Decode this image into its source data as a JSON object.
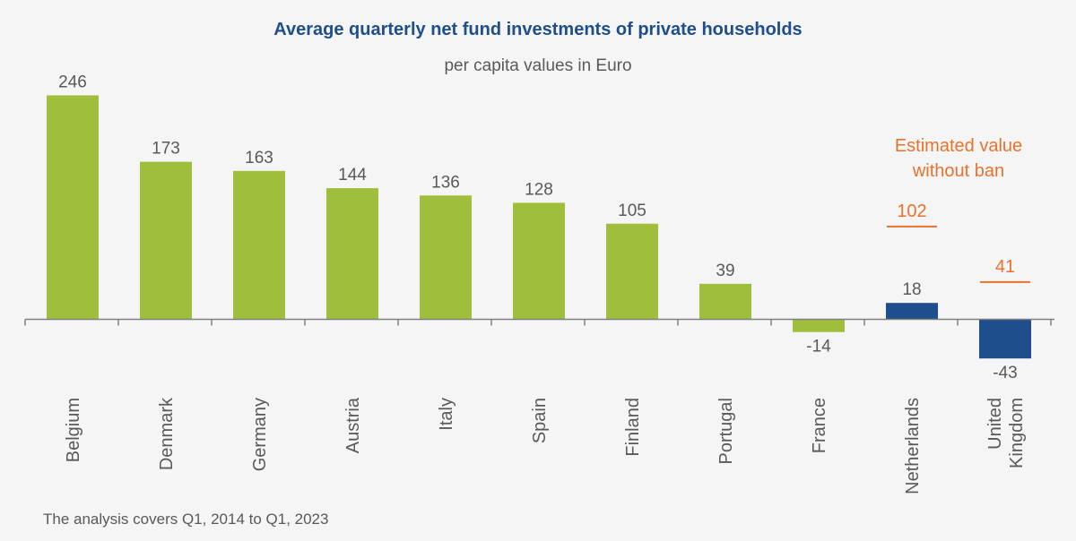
{
  "chart_data": {
    "type": "bar",
    "title": "Average quarterly net fund investments of private households",
    "subtitle": "per capita values in Euro",
    "categories": [
      "Belgium",
      "Denmark",
      "Germany",
      "Austria",
      "Italy",
      "Spain",
      "Finland",
      "Portugal",
      "France",
      "Netherlands",
      "United Kingdom"
    ],
    "category_lines": [
      [
        "Belgium"
      ],
      [
        "Denmark"
      ],
      [
        "Germany"
      ],
      [
        "Austria"
      ],
      [
        "Italy"
      ],
      [
        "Spain"
      ],
      [
        "Finland"
      ],
      [
        "Portugal"
      ],
      [
        "France"
      ],
      [
        "Netherlands"
      ],
      [
        "United",
        "Kingdom"
      ]
    ],
    "values": [
      246,
      173,
      163,
      144,
      136,
      128,
      105,
      39,
      -14,
      18,
      -43
    ],
    "value_labels": [
      "246",
      "173",
      "163",
      "144",
      "136",
      "128",
      "105",
      "39",
      "-14",
      "18",
      "-43"
    ],
    "highlighted": [
      false,
      false,
      false,
      false,
      false,
      false,
      false,
      false,
      false,
      true,
      true
    ],
    "estimates": {
      "label": "Estimated value without ban",
      "label_lines": [
        "Estimated value",
        "without ban"
      ],
      "points": [
        {
          "category": "Netherlands",
          "value": 102,
          "label": "102"
        },
        {
          "category": "United Kingdom",
          "value": 41,
          "label": "41"
        }
      ]
    },
    "colors": {
      "bar": "#9fbe3c",
      "highlight_bar": "#1f4e8c",
      "estimate": "#e8722c",
      "title": "#1f4e8c",
      "text": "#595959",
      "axis": "#7f7f7f"
    },
    "footnote": "The analysis covers Q1, 2014 to Q1, 2023"
  }
}
